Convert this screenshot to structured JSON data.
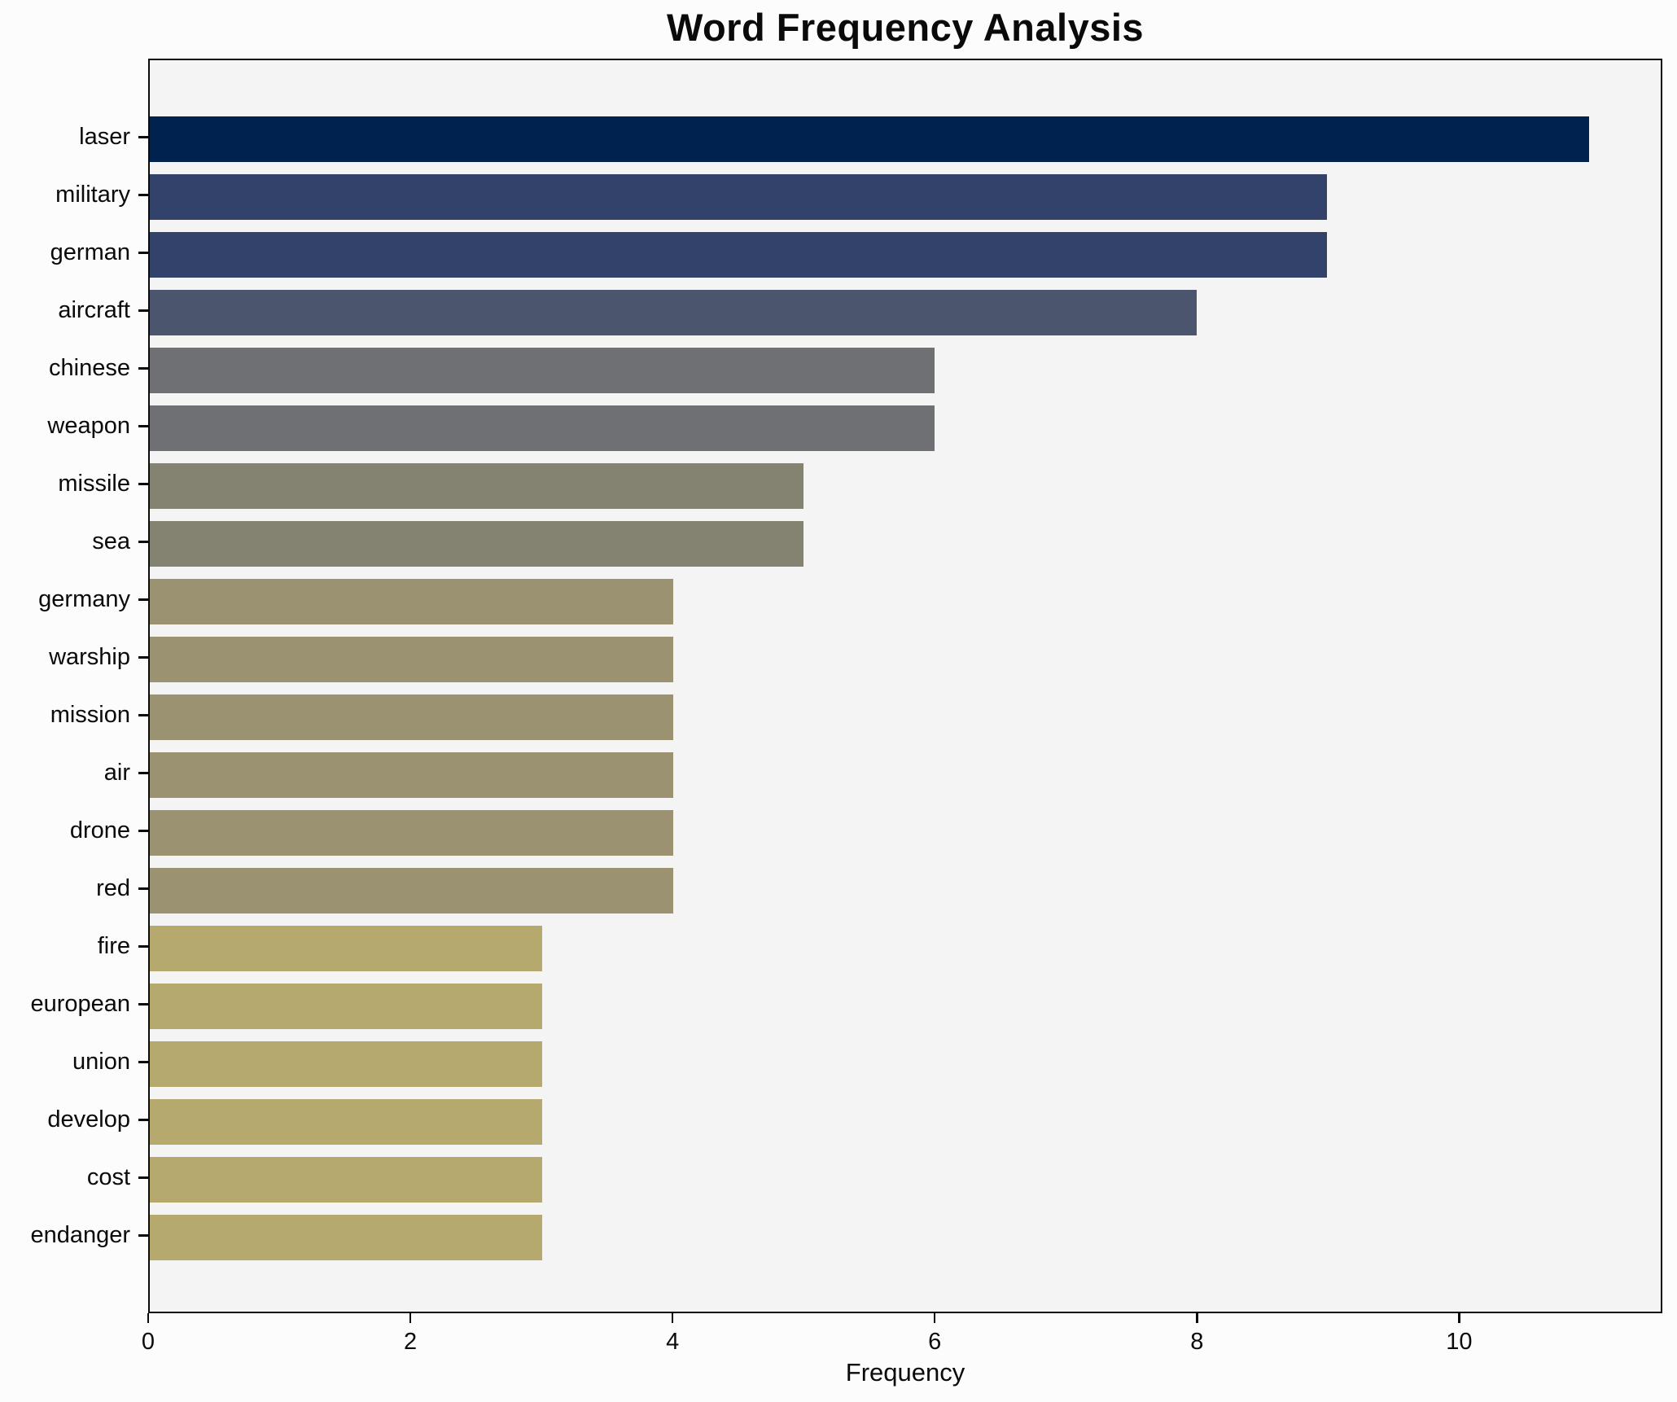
{
  "title": "Word Frequency Analysis",
  "chart_data": {
    "type": "bar",
    "orientation": "horizontal",
    "title": "Word Frequency Analysis",
    "xlabel": "Frequency",
    "ylabel": "",
    "xlim": [
      0,
      11.55
    ],
    "xticks": [
      0,
      2,
      4,
      6,
      8,
      10
    ],
    "grid": false,
    "legend": false,
    "categories": [
      "laser",
      "military",
      "german",
      "aircraft",
      "chinese",
      "weapon",
      "missile",
      "sea",
      "germany",
      "warship",
      "mission",
      "air",
      "drone",
      "red",
      "fire",
      "european",
      "union",
      "develop",
      "cost",
      "endanger"
    ],
    "values": [
      11,
      9,
      9,
      8,
      6,
      6,
      5,
      5,
      4,
      4,
      4,
      4,
      4,
      4,
      3,
      3,
      3,
      3,
      3,
      3
    ],
    "bar_colors": [
      "#00224e",
      "#33426b",
      "#33426b",
      "#4c556e",
      "#6f7073",
      "#6f7073",
      "#848371",
      "#848371",
      "#9a9270",
      "#9a9270",
      "#9a9270",
      "#9a9270",
      "#9a9270",
      "#9a9270",
      "#b5a96e",
      "#b5a96e",
      "#b5a96e",
      "#b5a96e",
      "#b5a96e",
      "#b5a96e"
    ],
    "plot_background": "#f5f4f5",
    "figure_background": "#fcfcfc",
    "axis_color": "#0a0a0a"
  }
}
